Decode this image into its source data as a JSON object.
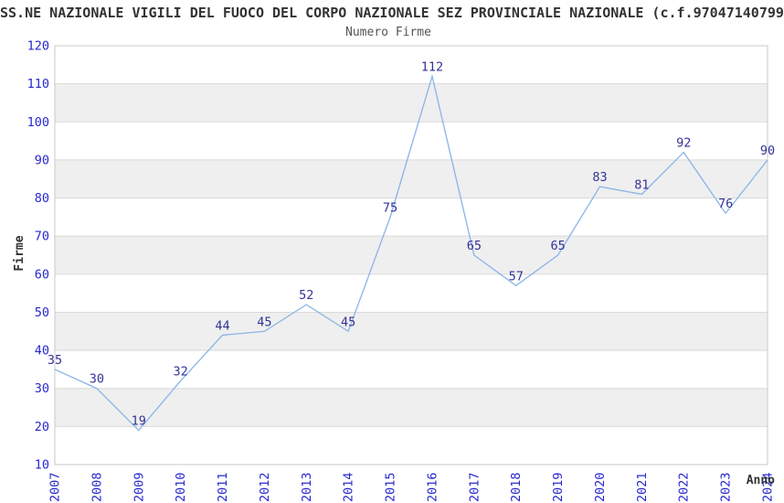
{
  "chart_data": {
    "type": "line",
    "title": "SS.NE NAZIONALE VIGILI DEL FUOCO DEL CORPO NAZIONALE SEZ PROVINCIALE NAZIONALE (c.f.97047140799",
    "subtitle": "Numero Firme",
    "xlabel": "Anno",
    "ylabel": "Firme",
    "categories": [
      "2007",
      "2008",
      "2009",
      "2010",
      "2011",
      "2012",
      "2013",
      "2014",
      "2015",
      "2016",
      "2017",
      "2018",
      "2019",
      "2020",
      "2021",
      "2022",
      "2023",
      "2024"
    ],
    "values": [
      35,
      30,
      19,
      32,
      44,
      45,
      52,
      45,
      75,
      112,
      65,
      57,
      65,
      83,
      81,
      92,
      76,
      90
    ],
    "ylim": [
      10,
      120
    ],
    "ytick_step": 10,
    "grid": true,
    "banding": true,
    "legend": "none",
    "colors": {
      "line": "#8ab4e8",
      "tick_label": "#2727cf",
      "data_label": "#333399",
      "band": "#efefef",
      "gridline": "#d9d9d9",
      "border": "#c9c9c9",
      "axis_label": "#333333",
      "title": "#333333",
      "subtitle": "#555555",
      "background": "#ffffff"
    }
  }
}
